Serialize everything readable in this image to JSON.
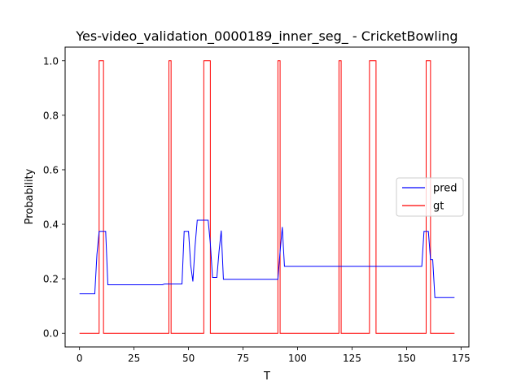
{
  "chart_data": {
    "type": "line",
    "title": "Yes-video_validation_0000189_inner_seg_ - CricketBowling",
    "xlabel": "T",
    "ylabel": "Probability",
    "xlim": [
      -6.6,
      178.6
    ],
    "ylim": [
      -0.05,
      1.05
    ],
    "xticks": [
      0,
      25,
      50,
      75,
      100,
      125,
      150,
      175
    ],
    "yticks": [
      0.0,
      0.2,
      0.4,
      0.6,
      0.8,
      1.0
    ],
    "xtick_labels": [
      "0",
      "25",
      "50",
      "75",
      "100",
      "125",
      "150",
      "175"
    ],
    "ytick_labels": [
      "0.0",
      "0.2",
      "0.4",
      "0.6",
      "0.8",
      "1.0"
    ],
    "grid": false,
    "legend_position": "center-right",
    "series": [
      {
        "name": "pred",
        "color": "#0000ff",
        "x": [
          0,
          7,
          8,
          9,
          12,
          13,
          38,
          39,
          47,
          48,
          50,
          51,
          52,
          53,
          54,
          59,
          60,
          61,
          62,
          63,
          64,
          65,
          66,
          67,
          91,
          92,
          93,
          94,
          157,
          158,
          160,
          161,
          162,
          163,
          172
        ],
        "y": [
          0.145,
          0.145,
          0.29,
          0.374,
          0.374,
          0.178,
          0.178,
          0.181,
          0.181,
          0.374,
          0.374,
          0.25,
          0.19,
          0.32,
          0.415,
          0.415,
          0.33,
          0.205,
          0.205,
          0.205,
          0.3,
          0.377,
          0.198,
          0.198,
          0.198,
          0.3,
          0.39,
          0.246,
          0.246,
          0.374,
          0.374,
          0.27,
          0.27,
          0.131,
          0.131
        ]
      },
      {
        "name": "gt",
        "color": "#ff0000",
        "step": true,
        "x": [
          0,
          9,
          9,
          11,
          11,
          41,
          41,
          42,
          42,
          57,
          57,
          60,
          60,
          91,
          91,
          92,
          92,
          119,
          119,
          120,
          120,
          133,
          133,
          136,
          136,
          159,
          159,
          161,
          161,
          172
        ],
        "y": [
          0,
          0,
          1,
          1,
          0,
          0,
          1,
          1,
          0,
          0,
          1,
          1,
          0,
          0,
          1,
          1,
          0,
          0,
          1,
          1,
          0,
          0,
          1,
          1,
          0,
          0,
          1,
          1,
          0,
          0
        ]
      }
    ]
  }
}
